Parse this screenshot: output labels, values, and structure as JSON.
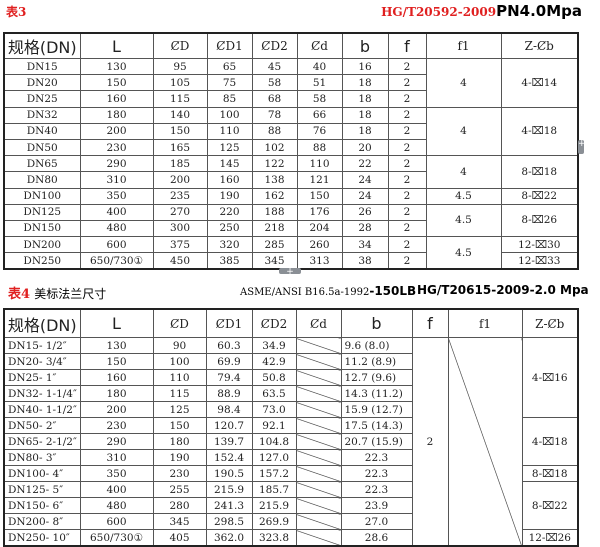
{
  "table3": {
    "label": "表3",
    "standard": "HG/T20592-2009",
    "pressure": "PN4.0Mpa",
    "headers": [
      "规格(DN)",
      "L",
      "ȻD",
      "ȻD1",
      "ȻD2",
      "Ȼd",
      "b",
      "f",
      "f1",
      "Z-Ȼb"
    ],
    "rows": [
      [
        "DN15",
        "130",
        "95",
        "65",
        "45",
        "40",
        "16",
        "2"
      ],
      [
        "DN20",
        "150",
        "105",
        "75",
        "58",
        "51",
        "18",
        "2"
      ],
      [
        "DN25",
        "160",
        "115",
        "85",
        "68",
        "58",
        "18",
        "2"
      ],
      [
        "DN32",
        "180",
        "140",
        "100",
        "78",
        "66",
        "18",
        "2"
      ],
      [
        "DN40",
        "200",
        "150",
        "110",
        "88",
        "76",
        "18",
        "2"
      ],
      [
        "DN50",
        "230",
        "165",
        "125",
        "102",
        "88",
        "20",
        "2"
      ],
      [
        "DN65",
        "290",
        "185",
        "145",
        "122",
        "110",
        "22",
        "2"
      ],
      [
        "DN80",
        "310",
        "200",
        "160",
        "138",
        "121",
        "24",
        "2"
      ],
      [
        "DN100",
        "350",
        "235",
        "190",
        "162",
        "150",
        "24",
        "2"
      ],
      [
        "DN125",
        "400",
        "270",
        "220",
        "188",
        "176",
        "26",
        "2"
      ],
      [
        "DN150",
        "480",
        "300",
        "250",
        "218",
        "204",
        "28",
        "2"
      ],
      [
        "DN200",
        "600",
        "375",
        "320",
        "285",
        "260",
        "34",
        "2"
      ],
      [
        "DN250",
        "650/730①",
        "450",
        "385",
        "345",
        "313",
        "38",
        "2"
      ]
    ],
    "f1_groups": [
      {
        "start": 0,
        "span": 3,
        "value": "4"
      },
      {
        "start": 3,
        "span": 3,
        "value": "4"
      },
      {
        "start": 6,
        "span": 2,
        "value": "4"
      },
      {
        "start": 8,
        "span": 1,
        "value": "4.5"
      },
      {
        "start": 9,
        "span": 2,
        "value": "4.5"
      },
      {
        "start": 11,
        "span": 2,
        "value": "4.5"
      }
    ],
    "z_groups": [
      {
        "start": 0,
        "span": 3,
        "value": "4-⌧14"
      },
      {
        "start": 3,
        "span": 3,
        "value": "4-⌧18"
      },
      {
        "start": 6,
        "span": 2,
        "value": "8-⌧18"
      },
      {
        "start": 8,
        "span": 1,
        "value": "8-⌧22"
      },
      {
        "start": 9,
        "span": 2,
        "value": "8-⌧26"
      },
      {
        "start": 11,
        "span": 1,
        "value": "12-⌧30"
      },
      {
        "start": 12,
        "span": 1,
        "value": "12-⌧33"
      }
    ]
  },
  "table4": {
    "label": "表4",
    "title": "美标法兰尺寸",
    "standard_asme": "ASME/ANSI B16.5a-1992",
    "class": "-150LB",
    "standard_hg": "HG/T20615-2009-2.0 Mpa",
    "headers": [
      "规格(DN)",
      "L",
      "ȻD",
      "ȻD1",
      "ȻD2",
      "Ȼd",
      "b",
      "f",
      "f1",
      "Z-Ȼb"
    ],
    "rows": [
      [
        "DN15- 1/2″",
        "130",
        "90",
        "60.3",
        "34.9",
        "9.6 (8.0)"
      ],
      [
        "DN20- 3/4″",
        "150",
        "100",
        "69.9",
        "42.9",
        "11.2 (8.9)"
      ],
      [
        "DN25- 1″",
        "160",
        "110",
        "79.4",
        "50.8",
        "12.7 (9.6)"
      ],
      [
        "DN32- 1-1/4″",
        "180",
        "115",
        "88.9",
        "63.5",
        "14.3 (11.2)"
      ],
      [
        "DN40- 1-1/2″",
        "200",
        "125",
        "98.4",
        "73.0",
        "15.9 (12.7)"
      ],
      [
        "DN50- 2″",
        "230",
        "150",
        "120.7",
        "92.1",
        "17.5 (14.3)"
      ],
      [
        "DN65- 2-1/2″",
        "290",
        "180",
        "139.7",
        "104.8",
        "20.7 (15.9)"
      ],
      [
        "DN80- 3″",
        "310",
        "190",
        "152.4",
        "127.0",
        "22.3"
      ],
      [
        "DN100- 4″",
        "350",
        "230",
        "190.5",
        "157.2",
        "22.3"
      ],
      [
        "DN125- 5″",
        "400",
        "255",
        "215.9",
        "185.7",
        "22.3"
      ],
      [
        "DN150- 6″",
        "480",
        "280",
        "241.3",
        "215.9",
        "23.9"
      ],
      [
        "DN200- 8″",
        "600",
        "345",
        "298.5",
        "269.9",
        "27.0"
      ],
      [
        "DN250- 10″",
        "650/730①",
        "405",
        "362.0",
        "323.8",
        "28.6"
      ]
    ],
    "f_value": "2",
    "z_groups": [
      {
        "start": 0,
        "span": 5,
        "value": "4-⌧16"
      },
      {
        "start": 5,
        "span": 3,
        "value": "4-⌧18"
      },
      {
        "start": 8,
        "span": 1,
        "value": "8-⌧18"
      },
      {
        "start": 9,
        "span": 3,
        "value": "8-⌧22"
      },
      {
        "start": 12,
        "span": 1,
        "value": "12-⌧26"
      }
    ]
  },
  "colors": {
    "label_red": "#e02020"
  }
}
